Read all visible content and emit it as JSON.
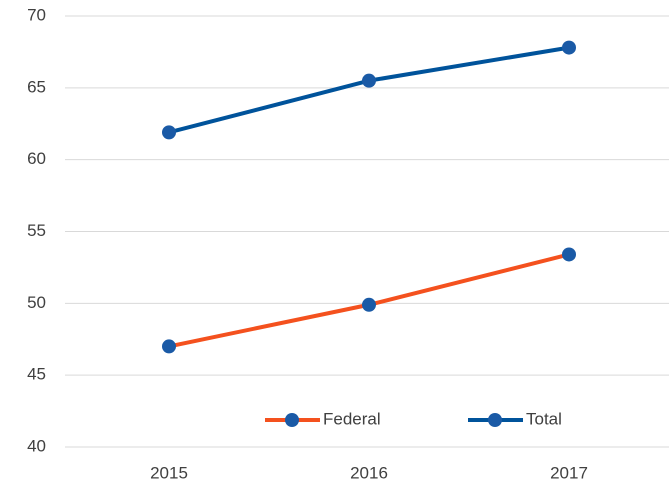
{
  "chart_data": {
    "type": "line",
    "categories": [
      "2015",
      "2016",
      "2017"
    ],
    "series": [
      {
        "name": "Federal",
        "color": "#f4511e",
        "marker_color": "#1a5aa6",
        "values": [
          47.0,
          49.9,
          53.4
        ]
      },
      {
        "name": "Total",
        "color": "#00539b",
        "marker_color": "#1a5aa6",
        "values": [
          61.9,
          65.5,
          67.8
        ]
      }
    ],
    "ylim": [
      40,
      70
    ],
    "yticks": [
      40,
      45,
      50,
      55,
      60,
      65,
      70
    ],
    "grid": true,
    "legend": "bottom"
  }
}
